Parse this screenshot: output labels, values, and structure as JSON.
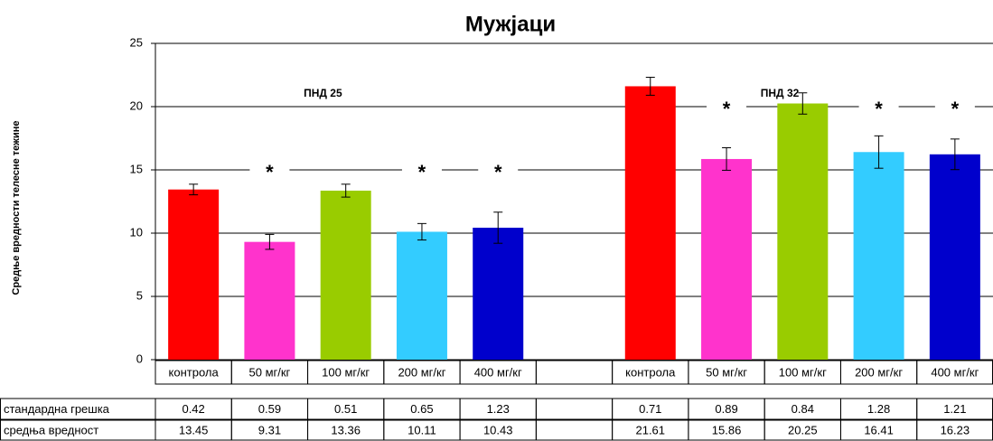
{
  "chart_data": {
    "type": "bar",
    "title": "Мужјаци",
    "y_label": "Средње вредности телесне тежине",
    "categories": [
      "контрола",
      "50 мг/кг",
      "100 мг/кг",
      "200 мг/кг",
      "400 мг/кг",
      null,
      "контрола",
      "50 мг/кг",
      "100 мг/кг",
      "200 мг/кг",
      "400 мг/кг"
    ],
    "series": [
      {
        "name": "средња вредност",
        "values": [
          13.45,
          9.31,
          13.36,
          10.11,
          10.43,
          null,
          21.61,
          15.86,
          20.25,
          16.41,
          16.23
        ],
        "colors": [
          "#ff0000",
          "#ff33cc",
          "#99cc00",
          "#33ccff",
          "#0000cc",
          null,
          "#ff0000",
          "#ff33cc",
          "#99cc00",
          "#33ccff",
          "#0000cc"
        ]
      }
    ],
    "errors": {
      "name": "стандардна грешка",
      "values": [
        0.42,
        0.59,
        0.51,
        0.65,
        1.23,
        null,
        0.71,
        0.89,
        0.84,
        1.28,
        1.21
      ]
    },
    "markers": [
      null,
      "*",
      null,
      "*",
      "*",
      null,
      null,
      "*",
      null,
      "*",
      "*"
    ],
    "groups": [
      "ПНД 25",
      "ПНД 32"
    ],
    "ylim": [
      0,
      25
    ],
    "yticks": [
      0,
      5,
      10,
      15,
      20,
      25
    ],
    "grid": true
  }
}
